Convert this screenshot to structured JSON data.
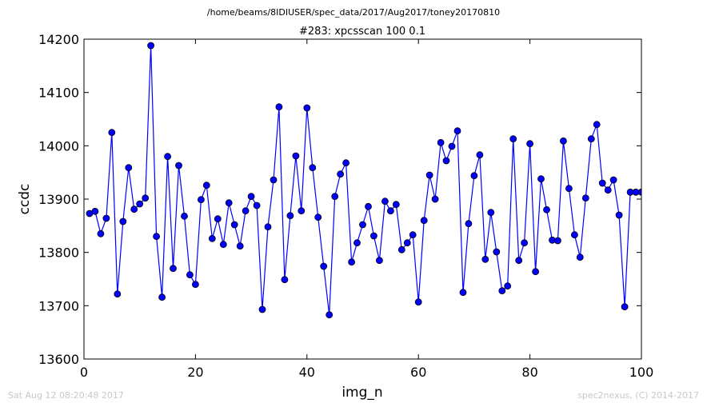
{
  "chart_data": {
    "type": "line",
    "suptitle": "/home/beams/8IDIUSER/spec_data/2017/Aug2017/toney20170810",
    "title": "#283: xpcsscan 100 0.1",
    "xlabel": "img_n",
    "ylabel": "ccdc",
    "xlim": [
      0,
      100
    ],
    "ylim": [
      13600,
      14200
    ],
    "xticks": [
      "0",
      "20",
      "40",
      "60",
      "80",
      "100"
    ],
    "yticks": [
      "13600",
      "13700",
      "13800",
      "13900",
      "14000",
      "14100",
      "14200"
    ],
    "grid": false,
    "legend": "none",
    "series": [
      {
        "color": "#0000ff",
        "marker": "circle",
        "x": [
          1,
          2,
          3,
          4,
          5,
          6,
          7,
          8,
          9,
          10,
          11,
          12,
          13,
          14,
          15,
          16,
          17,
          18,
          19,
          20,
          21,
          22,
          23,
          24,
          25,
          26,
          27,
          28,
          29,
          30,
          31,
          32,
          33,
          34,
          35,
          36,
          37,
          38,
          39,
          40,
          41,
          42,
          43,
          44,
          45,
          46,
          47,
          48,
          49,
          50,
          51,
          52,
          53,
          54,
          55,
          56,
          57,
          58,
          59,
          60,
          61,
          62,
          63,
          64,
          65,
          66,
          67,
          68,
          69,
          70,
          71,
          72,
          73,
          74,
          75,
          76,
          77,
          78,
          79,
          80,
          81,
          82,
          83,
          84,
          85,
          86,
          87,
          88,
          89,
          90,
          91,
          92,
          93,
          94,
          95,
          96,
          97,
          98,
          99,
          100
        ],
        "y": [
          13873,
          13877,
          13835,
          13864,
          14025,
          13722,
          13858,
          13959,
          13881,
          13891,
          13902,
          14188,
          13830,
          13716,
          13980,
          13770,
          13963,
          13868,
          13758,
          13740,
          13899,
          13926,
          13826,
          13863,
          13815,
          13893,
          13852,
          13812,
          13878,
          13905,
          13888,
          13693,
          13848,
          13936,
          14073,
          13749,
          13869,
          13981,
          13878,
          14071,
          13959,
          13866,
          13774,
          13683,
          13905,
          13947,
          13968,
          13782,
          13818,
          13852,
          13886,
          13831,
          13785,
          13896,
          13878,
          13890,
          13805,
          13818,
          13833,
          13707,
          13860,
          13945,
          13900,
          14006,
          13972,
          13999,
          14028,
          13725,
          13854,
          13944,
          13983,
          13787,
          13875,
          13801,
          13728,
          13737,
          14013,
          13785,
          13818,
          14004,
          13764,
          13938,
          13880,
          13823,
          13822,
          14009,
          13920,
          13833,
          13791,
          13902,
          14013,
          14040,
          13930,
          13917,
          13936,
          13870,
          13698,
          13913,
          13913,
          13913
        ]
      }
    ]
  },
  "footer": {
    "left": "Sat Aug 12 08:20:48 2017",
    "right": "spec2nexus, (C) 2014-2017"
  }
}
